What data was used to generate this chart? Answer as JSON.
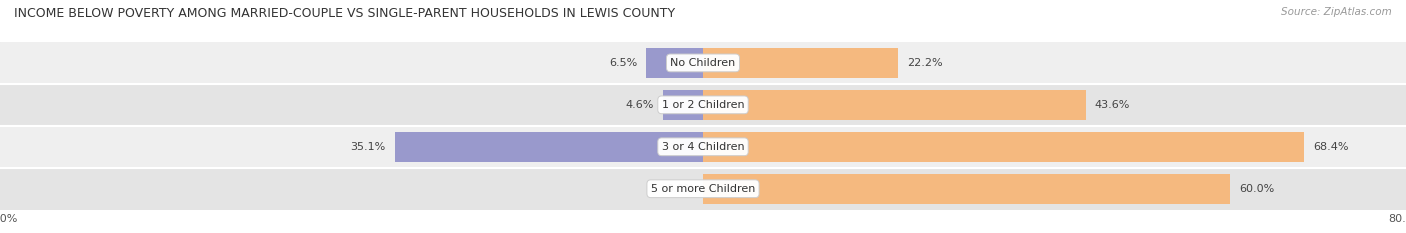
{
  "title": "INCOME BELOW POVERTY AMONG MARRIED-COUPLE VS SINGLE-PARENT HOUSEHOLDS IN LEWIS COUNTY",
  "source": "Source: ZipAtlas.com",
  "categories": [
    "No Children",
    "1 or 2 Children",
    "3 or 4 Children",
    "5 or more Children"
  ],
  "married_values": [
    6.5,
    4.6,
    35.1,
    0.0
  ],
  "single_values": [
    22.2,
    43.6,
    68.4,
    60.0
  ],
  "married_color": "#9999cc",
  "single_color": "#f5b97f",
  "row_bg_colors": [
    "#efefef",
    "#e4e4e4",
    "#efefef",
    "#e4e4e4"
  ],
  "xlim_left": -80.0,
  "xlim_right": 80.0,
  "title_fontsize": 9.0,
  "label_fontsize": 8.0,
  "value_fontsize": 8.0,
  "tick_fontsize": 8.0,
  "bar_height": 0.72,
  "figsize": [
    14.06,
    2.33
  ],
  "dpi": 100
}
